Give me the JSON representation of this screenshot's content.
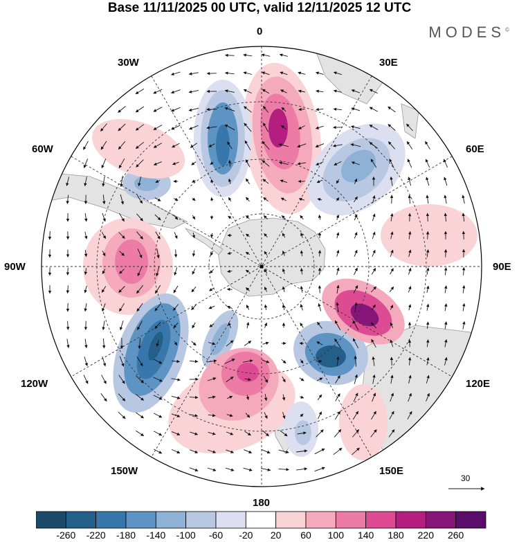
{
  "title": "Base 11/11/2025 00 UTC, valid 12/11/2025 12 UTC",
  "brand": "MODES",
  "brand_mark": "©",
  "lon_labels": {
    "n0": "0",
    "e30": "30E",
    "e60": "60E",
    "e90": "90E",
    "e120": "120E",
    "e150": "150E",
    "s180": "180",
    "w150": "150W",
    "w120": "120W",
    "w90": "90W",
    "w60": "60W",
    "w30": "30W"
  },
  "reference_vector": "30",
  "colorbar": {
    "ticks": [
      "-260",
      "-220",
      "-180",
      "-140",
      "-100",
      "-60",
      "-20",
      "20",
      "60",
      "100",
      "140",
      "180",
      "220",
      "260"
    ],
    "colors": [
      "#1c4a6b",
      "#245f8a",
      "#3777ab",
      "#5d94c4",
      "#8fb1d6",
      "#b9c8e2",
      "#dcdff0",
      "#ffffff",
      "#f9d3d6",
      "#f4a9bd",
      "#ec7ba6",
      "#dd4c93",
      "#b41f7f",
      "#86157a",
      "#5b0d6a"
    ]
  },
  "map_colors": {
    "land": "#e3e3e3",
    "land_stroke": "#9a9a9a",
    "ocean": "#ffffff",
    "grid": "#333333",
    "vector": "#111111"
  }
}
